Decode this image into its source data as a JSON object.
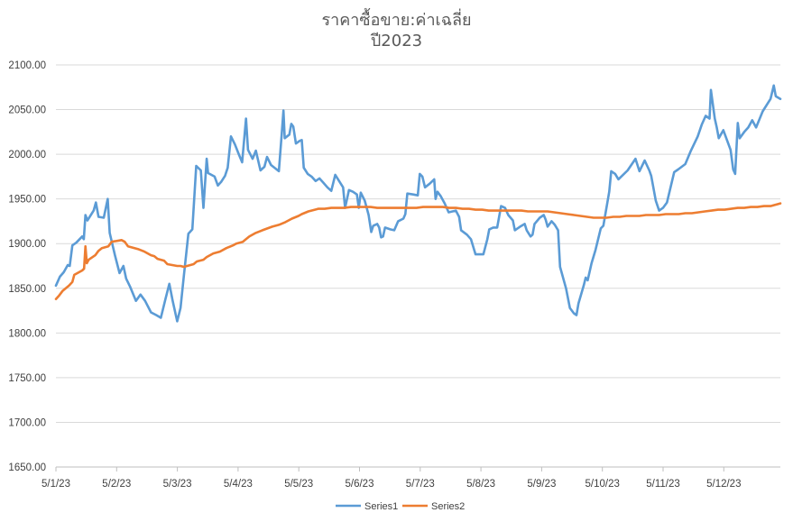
{
  "chart_data": {
    "type": "line",
    "title": "ราคาซื้อขาย:ค่าเฉลี่ย",
    "subtitle": "ปี2023",
    "xlabel": "",
    "ylabel": "",
    "ylim": [
      1650,
      2100
    ],
    "y_ticks": [
      "1650.00",
      "1700.00",
      "1750.00",
      "1800.00",
      "1850.00",
      "1900.00",
      "1950.00",
      "2000.00",
      "2050.00",
      "2100.00"
    ],
    "x_ticks": [
      "5/1/23",
      "5/2/23",
      "5/3/23",
      "5/4/23",
      "5/5/23",
      "5/6/23",
      "5/7/23",
      "5/8/23",
      "5/9/23",
      "5/10/23",
      "5/11/23",
      "5/12/23"
    ],
    "grid": true,
    "legend_position": "bottom",
    "series": [
      {
        "name": "Series1",
        "color": "#5B9BD5",
        "points": [
          [
            0,
            1853
          ],
          [
            1.2,
            1863
          ],
          [
            2.4,
            1868
          ],
          [
            3.6,
            1876
          ],
          [
            4.2,
            1875
          ],
          [
            5,
            1898
          ],
          [
            6.2,
            1901
          ],
          [
            8,
            1908
          ],
          [
            8.5,
            1905
          ],
          [
            9,
            1932
          ],
          [
            9.6,
            1926
          ],
          [
            11.5,
            1937
          ],
          [
            12.2,
            1946
          ],
          [
            13,
            1930
          ],
          [
            14.6,
            1929
          ],
          [
            15.8,
            1950
          ],
          [
            16.4,
            1912
          ],
          [
            18,
            1887
          ],
          [
            19.4,
            1867
          ],
          [
            20.6,
            1875
          ],
          [
            21.4,
            1861
          ],
          [
            22.6,
            1852
          ],
          [
            24.4,
            1836
          ],
          [
            25.8,
            1843
          ],
          [
            27.2,
            1836
          ],
          [
            29,
            1823
          ],
          [
            30.6,
            1820
          ],
          [
            32,
            1817
          ],
          [
            33.4,
            1838
          ],
          [
            34.6,
            1855
          ],
          [
            35.6,
            1836
          ],
          [
            37,
            1813
          ],
          [
            38,
            1828
          ],
          [
            39,
            1863
          ],
          [
            40.4,
            1911
          ],
          [
            41.6,
            1916
          ],
          [
            42.8,
            1987
          ],
          [
            44.2,
            1982
          ],
          [
            45,
            1940
          ],
          [
            46,
            1995
          ],
          [
            46.4,
            1979
          ],
          [
            48.4,
            1975
          ],
          [
            49.4,
            1965
          ],
          [
            50.4,
            1969
          ],
          [
            51.6,
            1976
          ],
          [
            52.4,
            1985
          ],
          [
            53.4,
            2020
          ],
          [
            54.6,
            2011
          ],
          [
            55.8,
            2000
          ],
          [
            56.8,
            1991
          ],
          [
            58,
            2040
          ],
          [
            58.6,
            2005
          ],
          [
            60,
            1995
          ],
          [
            61,
            2004
          ],
          [
            62.4,
            1982
          ],
          [
            63.6,
            1986
          ],
          [
            64.4,
            1997
          ],
          [
            65.6,
            1988
          ],
          [
            68,
            1981
          ],
          [
            68.8,
            2019
          ],
          [
            69.4,
            2049
          ],
          [
            69.8,
            2018
          ],
          [
            71.2,
            2022
          ],
          [
            71.8,
            2034
          ],
          [
            72.4,
            2031
          ],
          [
            73.2,
            2012
          ],
          [
            74.4,
            2015
          ],
          [
            75,
            2016
          ],
          [
            75.6,
            1985
          ],
          [
            76.8,
            1978
          ],
          [
            78,
            1975
          ],
          [
            79.2,
            1970
          ],
          [
            80.4,
            1973
          ],
          [
            81.6,
            1968
          ],
          [
            82.8,
            1963
          ],
          [
            84,
            1959
          ],
          [
            85.2,
            1977
          ],
          [
            86.4,
            1970
          ],
          [
            87.6,
            1963
          ],
          [
            88.2,
            1940
          ],
          [
            89.4,
            1960
          ],
          [
            90.6,
            1958
          ],
          [
            91.8,
            1955
          ],
          [
            92.4,
            1940
          ],
          [
            93,
            1957
          ],
          [
            94.2,
            1948
          ],
          [
            94.8,
            1940
          ],
          [
            95.4,
            1932
          ],
          [
            96.2,
            1913
          ],
          [
            96.8,
            1920
          ],
          [
            98,
            1922
          ],
          [
            98.6,
            1918
          ],
          [
            99.2,
            1907
          ],
          [
            99.8,
            1908
          ],
          [
            100.4,
            1918
          ],
          [
            102,
            1916
          ],
          [
            103.2,
            1915
          ],
          [
            104.4,
            1925
          ],
          [
            106,
            1928
          ],
          [
            106.6,
            1933
          ],
          [
            107.2,
            1956
          ],
          [
            109,
            1955
          ],
          [
            110.4,
            1954
          ],
          [
            111,
            1978
          ],
          [
            111.8,
            1975
          ],
          [
            112.6,
            1963
          ],
          [
            114,
            1967
          ],
          [
            115.4,
            1972
          ],
          [
            115.8,
            1950
          ],
          [
            116.4,
            1958
          ],
          [
            117.4,
            1953
          ],
          [
            118.6,
            1945
          ],
          [
            119.8,
            1935
          ],
          [
            122,
            1937
          ],
          [
            123,
            1930
          ],
          [
            123.6,
            1915
          ],
          [
            125.4,
            1910
          ],
          [
            126.6,
            1905
          ],
          [
            128,
            1888
          ],
          [
            130.4,
            1888
          ],
          [
            131.6,
            1905
          ],
          [
            132.2,
            1916
          ],
          [
            133.4,
            1918
          ],
          [
            134.6,
            1918
          ],
          [
            135.8,
            1942
          ],
          [
            137,
            1940
          ],
          [
            138,
            1932
          ],
          [
            139.4,
            1926
          ],
          [
            140,
            1915
          ],
          [
            141.6,
            1919
          ],
          [
            143,
            1922
          ],
          [
            143.6,
            1915
          ],
          [
            144.8,
            1908
          ],
          [
            145.4,
            1910
          ],
          [
            146,
            1922
          ],
          [
            147.6,
            1929
          ],
          [
            148.8,
            1932
          ],
          [
            149.4,
            1927
          ],
          [
            150,
            1919
          ],
          [
            151.2,
            1925
          ],
          [
            152.2,
            1921
          ],
          [
            153.2,
            1915
          ],
          [
            153.8,
            1874
          ],
          [
            155.6,
            1850
          ],
          [
            156.8,
            1828
          ],
          [
            158,
            1822
          ],
          [
            158.8,
            1820
          ],
          [
            159.4,
            1833
          ],
          [
            161,
            1853
          ],
          [
            161.6,
            1862
          ],
          [
            162.2,
            1859
          ],
          [
            163.4,
            1878
          ],
          [
            164.6,
            1893
          ],
          [
            166.2,
            1917
          ],
          [
            167,
            1920
          ],
          [
            168.8,
            1958
          ],
          [
            169.4,
            1981
          ],
          [
            170.6,
            1978
          ],
          [
            171.6,
            1972
          ],
          [
            174.4,
            1982
          ],
          [
            176.8,
            1995
          ],
          [
            178,
            1981
          ],
          [
            179.6,
            1993
          ],
          [
            181,
            1982
          ],
          [
            181.6,
            1976
          ],
          [
            182.2,
            1964
          ],
          [
            183,
            1948
          ],
          [
            184,
            1937
          ],
          [
            185.2,
            1940
          ],
          [
            186.4,
            1946
          ],
          [
            188.6,
            1980
          ],
          [
            189.8,
            1983
          ],
          [
            192,
            1989
          ],
          [
            193.6,
            2003
          ],
          [
            195.8,
            2020
          ],
          [
            197,
            2033
          ],
          [
            198.2,
            2043
          ],
          [
            199.4,
            2040
          ],
          [
            199.8,
            2072
          ],
          [
            201,
            2040
          ],
          [
            201.6,
            2030
          ],
          [
            202.2,
            2018
          ],
          [
            203.6,
            2027
          ],
          [
            205.8,
            2005
          ],
          [
            206.6,
            1983
          ],
          [
            207.2,
            1978
          ],
          [
            208,
            2035
          ],
          [
            208.6,
            2018
          ],
          [
            210,
            2025
          ],
          [
            211.2,
            2030
          ],
          [
            212.4,
            2038
          ],
          [
            213.6,
            2030
          ],
          [
            215.6,
            2048
          ],
          [
            218,
            2062
          ],
          [
            219,
            2077
          ],
          [
            219.6,
            2065
          ],
          [
            221,
            2062
          ]
        ]
      },
      {
        "name": "Series2",
        "color": "#ED7D31",
        "points": [
          [
            0,
            1838
          ],
          [
            1,
            1842
          ],
          [
            2,
            1847
          ],
          [
            4,
            1853
          ],
          [
            5,
            1857
          ],
          [
            5.6,
            1865
          ],
          [
            8,
            1870
          ],
          [
            8.6,
            1872
          ],
          [
            9,
            1897
          ],
          [
            9.4,
            1878
          ],
          [
            10,
            1882
          ],
          [
            12,
            1887
          ],
          [
            13,
            1892
          ],
          [
            14,
            1895
          ],
          [
            16,
            1897
          ],
          [
            17,
            1902
          ],
          [
            20,
            1904
          ],
          [
            21,
            1902
          ],
          [
            22,
            1897
          ],
          [
            25,
            1894
          ],
          [
            27,
            1891
          ],
          [
            29,
            1887
          ],
          [
            30,
            1886
          ],
          [
            31,
            1883
          ],
          [
            33,
            1881
          ],
          [
            34,
            1877
          ],
          [
            37,
            1875
          ],
          [
            38,
            1875
          ],
          [
            39,
            1874
          ],
          [
            41,
            1876
          ],
          [
            42,
            1877
          ],
          [
            43,
            1880
          ],
          [
            45,
            1882
          ],
          [
            46,
            1885
          ],
          [
            48,
            1889
          ],
          [
            50,
            1891
          ],
          [
            52,
            1895
          ],
          [
            54,
            1898
          ],
          [
            55,
            1900
          ],
          [
            57,
            1902
          ],
          [
            58,
            1905
          ],
          [
            59,
            1908
          ],
          [
            61,
            1912
          ],
          [
            63,
            1915
          ],
          [
            66,
            1919
          ],
          [
            68,
            1921
          ],
          [
            70,
            1924
          ],
          [
            72,
            1928
          ],
          [
            74,
            1931
          ],
          [
            75,
            1933
          ],
          [
            77,
            1936
          ],
          [
            79,
            1938
          ],
          [
            80,
            1939
          ],
          [
            82,
            1939
          ],
          [
            84,
            1940
          ],
          [
            86,
            1940
          ],
          [
            88,
            1940
          ],
          [
            90,
            1941
          ],
          [
            92,
            1941
          ],
          [
            94,
            1941
          ],
          [
            96,
            1941
          ],
          [
            98,
            1940
          ],
          [
            100,
            1940
          ],
          [
            102,
            1940
          ],
          [
            104,
            1940
          ],
          [
            106,
            1940
          ],
          [
            108,
            1940
          ],
          [
            110,
            1940
          ],
          [
            112,
            1941
          ],
          [
            114,
            1941
          ],
          [
            116,
            1941
          ],
          [
            118,
            1941
          ],
          [
            120,
            1940
          ],
          [
            122,
            1940
          ],
          [
            124,
            1939
          ],
          [
            126,
            1939
          ],
          [
            128,
            1938
          ],
          [
            130,
            1938
          ],
          [
            132,
            1937
          ],
          [
            134,
            1937
          ],
          [
            136,
            1937
          ],
          [
            138,
            1937
          ],
          [
            140,
            1937
          ],
          [
            142,
            1937
          ],
          [
            144,
            1936
          ],
          [
            146,
            1936
          ],
          [
            148,
            1936
          ],
          [
            150,
            1936
          ],
          [
            152,
            1935
          ],
          [
            154,
            1934
          ],
          [
            156,
            1933
          ],
          [
            158,
            1932
          ],
          [
            160,
            1931
          ],
          [
            162,
            1930
          ],
          [
            164,
            1929
          ],
          [
            166,
            1929
          ],
          [
            168,
            1929
          ],
          [
            170,
            1930
          ],
          [
            172,
            1930
          ],
          [
            174,
            1931
          ],
          [
            176,
            1931
          ],
          [
            178,
            1931
          ],
          [
            180,
            1932
          ],
          [
            182,
            1932
          ],
          [
            184,
            1932
          ],
          [
            186,
            1933
          ],
          [
            188,
            1933
          ],
          [
            190,
            1933
          ],
          [
            192,
            1934
          ],
          [
            194,
            1934
          ],
          [
            196,
            1935
          ],
          [
            198,
            1936
          ],
          [
            200,
            1937
          ],
          [
            202,
            1938
          ],
          [
            204,
            1938
          ],
          [
            206,
            1939
          ],
          [
            208,
            1940
          ],
          [
            210,
            1940
          ],
          [
            212,
            1941
          ],
          [
            214,
            1941
          ],
          [
            216,
            1942
          ],
          [
            218,
            1942
          ],
          [
            219,
            1943
          ],
          [
            220,
            1944
          ],
          [
            221,
            1945
          ]
        ]
      }
    ]
  }
}
